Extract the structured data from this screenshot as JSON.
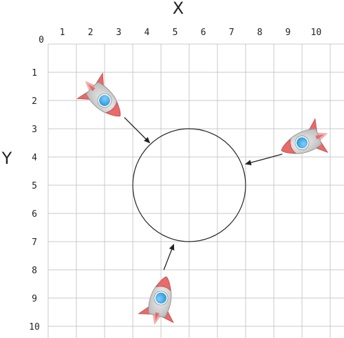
{
  "diagram": {
    "x_axis_label": "X",
    "y_axis_label": "Y",
    "origin_label": "0",
    "x_ticks": [
      "1",
      "2",
      "3",
      "4",
      "5",
      "6",
      "7",
      "8",
      "9",
      "10"
    ],
    "y_ticks": [
      "1",
      "2",
      "3",
      "4",
      "5",
      "6",
      "7",
      "8",
      "9",
      "10"
    ],
    "range": {
      "x": [
        0,
        10
      ],
      "y": [
        0,
        10
      ]
    },
    "y_axis_direction": "down",
    "grid": true,
    "target_circle": {
      "cx": 5,
      "cy": 5,
      "r": 2
    },
    "rockets": [
      {
        "name": "rocket-top-left",
        "x": 2,
        "y": 2
      },
      {
        "name": "rocket-right",
        "x": 9,
        "y": 3.5
      },
      {
        "name": "rocket-bottom",
        "x": 4,
        "y": 9
      }
    ],
    "arrows": [
      {
        "from": [
          2.7,
          2.6
        ],
        "to": [
          3.6,
          3.5
        ]
      },
      {
        "from": [
          8.3,
          3.9
        ],
        "to": [
          7.0,
          4.25
        ]
      },
      {
        "from": [
          4.1,
          8.0
        ],
        "to": [
          4.45,
          7.1
        ]
      }
    ]
  },
  "colors": {
    "grid": "#c8c8c8",
    "text": "#222222",
    "rocket_body": "#e8e8e8",
    "rocket_fin": "#e86a6a",
    "rocket_window": "#3aa7e6"
  }
}
